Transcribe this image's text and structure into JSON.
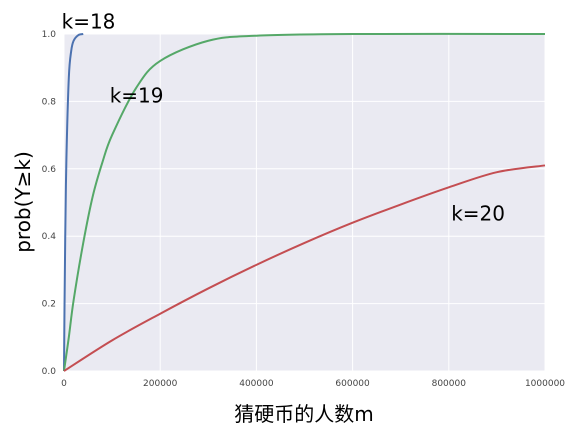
{
  "chart_data": {
    "type": "line",
    "title": "",
    "xlabel": "猜硬币的人数m",
    "ylabel": "prob(Y≥k)",
    "xlim": [
      0,
      1000000
    ],
    "ylim": [
      0.0,
      1.0
    ],
    "grid": true,
    "x_ticks": [
      "0",
      "200000",
      "400000",
      "600000",
      "800000",
      "1000000"
    ],
    "y_ticks": [
      "0.0",
      "0.2",
      "0.4",
      "0.6",
      "0.8",
      "1.0"
    ],
    "colors": {
      "background": "#eaeaf2",
      "grid": "#ffffff"
    },
    "series": [
      {
        "color": "#4c72b0",
        "x": [
          0,
          1000,
          2500,
          5000,
          10000,
          15000,
          20000,
          30000,
          40000
        ],
        "y": [
          0.0,
          0.18,
          0.39,
          0.63,
          0.87,
          0.95,
          0.98,
          0.997,
          1.0
        ]
      },
      {
        "color": "#55a868",
        "x": [
          0,
          10000,
          20000,
          40000,
          60000,
          80000,
          100000,
          150000,
          200000,
          300000,
          400000,
          600000,
          1000000
        ],
        "y": [
          0.0,
          0.1,
          0.21,
          0.38,
          0.52,
          0.62,
          0.7,
          0.84,
          0.92,
          0.98,
          0.995,
          1.0,
          1.0
        ]
      },
      {
        "color": "#c44e52",
        "x": [
          0,
          100000,
          200000,
          300000,
          400000,
          500000,
          600000,
          700000,
          800000,
          900000,
          1000000
        ],
        "y": [
          0.0,
          0.091,
          0.17,
          0.245,
          0.315,
          0.38,
          0.44,
          0.494,
          0.545,
          0.59,
          0.61
        ]
      }
    ],
    "annotations": [
      {
        "text": "k=18",
        "x": 20000,
        "y": 1.04
      },
      {
        "text": "k=19",
        "x": 120000,
        "y": 0.82
      },
      {
        "text": "k=20",
        "x": 830000,
        "y": 0.47
      }
    ]
  }
}
